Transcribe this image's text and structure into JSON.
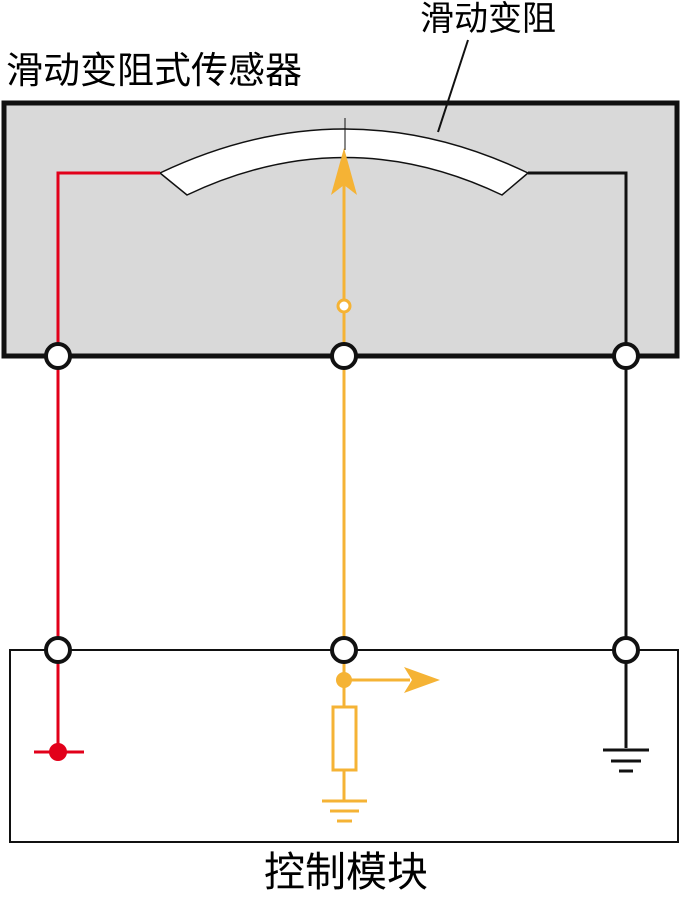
{
  "labels": {
    "rheostat": "滑动变阻",
    "sensor_title": "滑动变阻式传感器",
    "control_module": "控制模块"
  },
  "colors": {
    "supply_wire": "#e2001a",
    "signal_wire": "#f5b335",
    "ground_wire": "#111111",
    "sensor_fill": "#d9d9d9",
    "outline": "#111111",
    "terminal_fill": "#ffffff"
  },
  "icons": {
    "terminal": "terminal-circle-icon",
    "ground": "ground-symbol-icon",
    "resistor": "resistor-icon",
    "arrow": "arrow-icon"
  }
}
